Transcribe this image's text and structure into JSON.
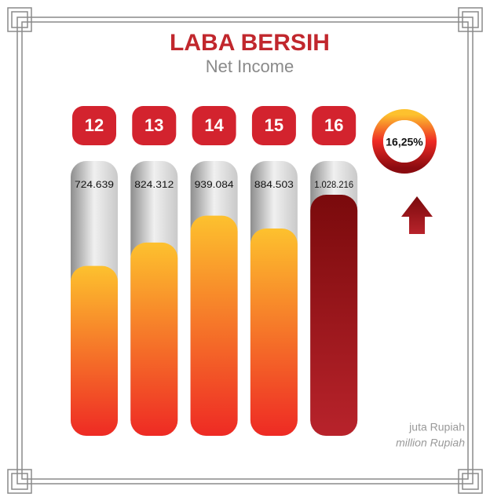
{
  "chart_data": {
    "type": "bar",
    "title": "LABA BERSIH",
    "subtitle": "Net Income",
    "categories": [
      "12",
      "13",
      "14",
      "15",
      "16"
    ],
    "values": [
      724639,
      824312,
      939084,
      884503,
      1028216
    ],
    "value_labels": [
      "724.639",
      "824.312",
      "939.084",
      "884.503",
      "1.028.216"
    ],
    "color": [
      "#fdc12e",
      "#ee2a24"
    ],
    "highlight": 4,
    "highlight_color": [
      "#7a0a0c",
      "#b8232b"
    ],
    "badge_color": "#d3232e",
    "growth": {
      "value": 16.25,
      "label": "16,25%"
    },
    "unit": [
      "juta Rupiah",
      "million Rupiah"
    ]
  }
}
